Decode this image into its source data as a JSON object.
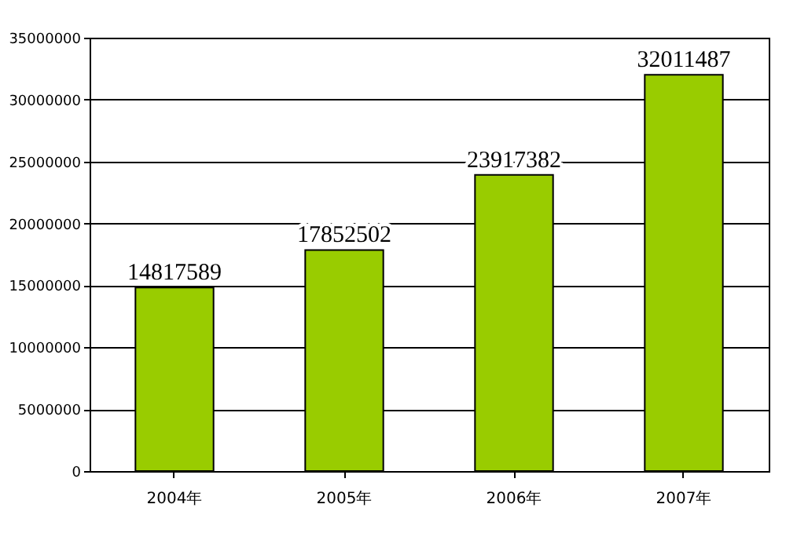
{
  "chart_data": {
    "type": "bar",
    "categories": [
      "2004年",
      "2005年",
      "2006年",
      "2007年"
    ],
    "values": [
      14817589,
      17852502,
      23917382,
      32011487
    ],
    "color": "#99cc00",
    "ylim": [
      0,
      35000000
    ],
    "yticks": [
      0,
      5000000,
      10000000,
      15000000,
      20000000,
      25000000,
      30000000,
      35000000
    ],
    "grid": "y",
    "data_labels": true
  }
}
